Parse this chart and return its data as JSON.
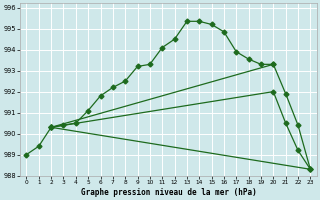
{
  "title": "Graphe pression niveau de la mer (hPa)",
  "bg_color": "#cfe8ea",
  "grid_color": "#ffffff",
  "line_color": "#1e6b1e",
  "xlim": [
    -0.5,
    23.5
  ],
  "ylim": [
    988.0,
    996.2
  ],
  "xticks": [
    0,
    1,
    2,
    3,
    4,
    5,
    6,
    7,
    8,
    9,
    10,
    11,
    12,
    13,
    14,
    15,
    16,
    17,
    18,
    19,
    20,
    21,
    22,
    23
  ],
  "yticks": [
    988,
    989,
    990,
    991,
    992,
    993,
    994,
    995,
    996
  ],
  "series1_x": [
    0,
    1,
    2,
    3,
    4,
    5,
    6,
    7,
    8,
    9,
    10,
    11,
    12,
    13,
    14,
    15,
    16,
    17,
    18,
    19,
    20
  ],
  "series1_y": [
    989.0,
    989.4,
    990.3,
    990.4,
    990.5,
    991.1,
    991.8,
    992.2,
    992.5,
    993.2,
    993.3,
    994.1,
    994.5,
    995.35,
    995.35,
    995.2,
    994.85,
    993.9,
    993.55,
    993.3,
    993.3
  ],
  "series2_x": [
    2,
    20,
    21,
    22,
    23
  ],
  "series2_y": [
    990.3,
    993.3,
    991.9,
    990.4,
    988.3
  ],
  "series3_x": [
    2,
    20,
    21,
    22,
    23
  ],
  "series3_y": [
    990.3,
    992.0,
    990.5,
    989.2,
    988.3
  ],
  "series4_x": [
    2,
    23
  ],
  "series4_y": [
    990.3,
    988.3
  ],
  "figsize": [
    3.2,
    2.0
  ],
  "dpi": 100,
  "tick_labelsize": 5,
  "xlabel_fontsize": 5.5
}
